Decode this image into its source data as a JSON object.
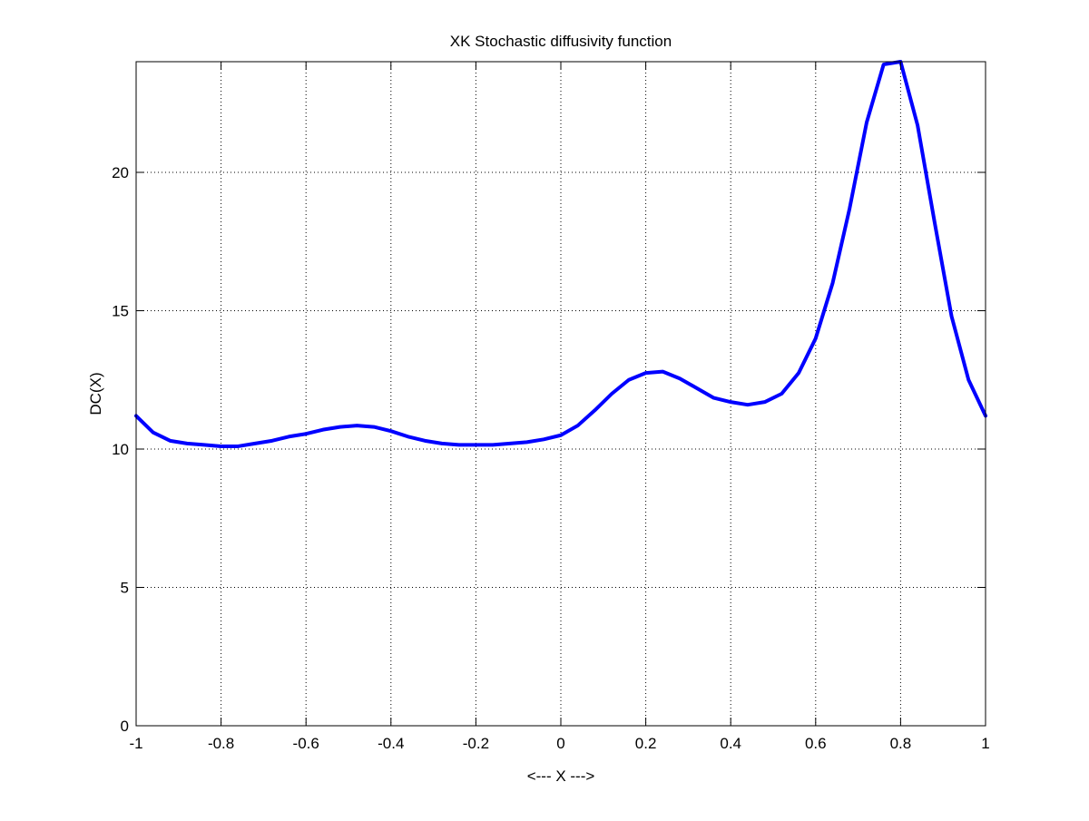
{
  "chart_data": {
    "type": "line",
    "title": "XK Stochastic diffusivity function",
    "xlabel": "<--- X --->",
    "ylabel": "DC(X)",
    "xlim": [
      -1,
      1
    ],
    "ylim": [
      0,
      24
    ],
    "xticks": [
      -1,
      -0.8,
      -0.6,
      -0.4,
      -0.2,
      0,
      0.2,
      0.4,
      0.6,
      0.8,
      1
    ],
    "xtick_labels": [
      "-1",
      "-0.8",
      "-0.6",
      "-0.4",
      "-0.2",
      "0",
      "0.2",
      "0.4",
      "0.6",
      "0.8",
      "1"
    ],
    "yticks": [
      0,
      5,
      10,
      15,
      20
    ],
    "ytick_labels": [
      "0",
      "5",
      "10",
      "15",
      "20"
    ],
    "grid": true,
    "grid_style": "dotted",
    "series": [
      {
        "color": "#0000ff",
        "x": [
          -1.0,
          -0.96,
          -0.92,
          -0.88,
          -0.84,
          -0.8,
          -0.76,
          -0.72,
          -0.68,
          -0.64,
          -0.6,
          -0.56,
          -0.52,
          -0.48,
          -0.44,
          -0.4,
          -0.36,
          -0.32,
          -0.28,
          -0.24,
          -0.2,
          -0.16,
          -0.12,
          -0.08,
          -0.04,
          0.0,
          0.04,
          0.08,
          0.12,
          0.16,
          0.2,
          0.24,
          0.28,
          0.32,
          0.36,
          0.4,
          0.44,
          0.48,
          0.52,
          0.56,
          0.6,
          0.64,
          0.68,
          0.72,
          0.76,
          0.8,
          0.84,
          0.88,
          0.92,
          0.96,
          1.0
        ],
        "y": [
          11.2,
          10.6,
          10.3,
          10.2,
          10.15,
          10.1,
          10.1,
          10.2,
          10.3,
          10.45,
          10.55,
          10.7,
          10.8,
          10.85,
          10.8,
          10.65,
          10.45,
          10.3,
          10.2,
          10.15,
          10.15,
          10.15,
          10.2,
          10.25,
          10.35,
          10.5,
          10.85,
          11.4,
          12.0,
          12.5,
          12.75,
          12.8,
          12.55,
          12.2,
          11.85,
          11.7,
          11.6,
          11.7,
          12.0,
          12.75,
          14.0,
          16.0,
          18.7,
          21.8,
          23.9,
          24.0,
          21.7,
          18.2,
          14.8,
          12.5,
          11.2
        ]
      }
    ]
  }
}
